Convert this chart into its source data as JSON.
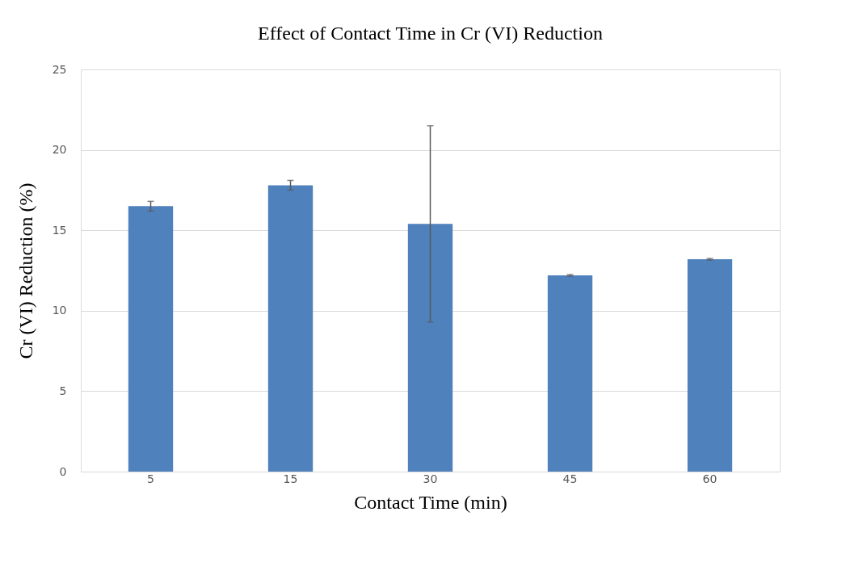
{
  "chart_data": {
    "type": "bar",
    "title": "Effect of Contact Time in Cr (VI) Reduction",
    "xlabel": "Contact Time (min)",
    "ylabel": "Cr (VI) Reduction (%)",
    "categories": [
      "5",
      "15",
      "30",
      "45",
      "60"
    ],
    "values": [
      16.5,
      17.8,
      15.4,
      12.2,
      13.2
    ],
    "errors": [
      0.3,
      0.3,
      [
        9.3,
        21.5
      ],
      0.05,
      0.05
    ],
    "color": "#4f81bd",
    "ylim": [
      0,
      25
    ],
    "yticks": [
      0,
      5,
      10,
      15,
      20,
      25
    ],
    "grid": "y"
  }
}
